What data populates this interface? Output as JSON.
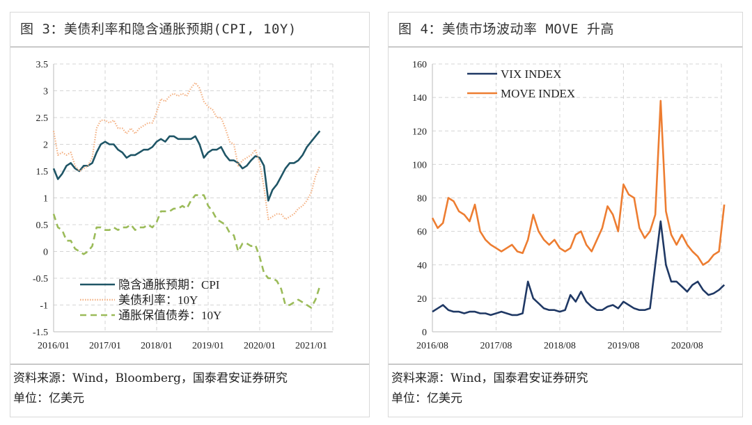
{
  "left_panel": {
    "title": "图 3：美债利率和隐含通胀预期(CPI, 10Y)",
    "source": "资料来源：Wind，Bloomberg，国泰君安证券研究",
    "unit": "单位：亿美元"
  },
  "right_panel": {
    "title": "图 4：美债市场波动率 MOVE 升高",
    "source": "资料来源：Wind，国泰君安证券研究",
    "unit": "单位：亿美元"
  },
  "chart_data": [
    {
      "type": "line",
      "title": "图 3：美债利率和隐含通胀预期(CPI, 10Y)",
      "xlabel": "",
      "ylabel": "",
      "x_start": 2016.0,
      "x_step_months": 1,
      "xlim": [
        2016.0,
        2021.42
      ],
      "ylim": [
        -1.5,
        3.5
      ],
      "yticks": [
        "-1.5",
        "-1",
        "-0.5",
        "0",
        "0.5",
        "1",
        "1.5",
        "2",
        "2.5",
        "3",
        "3.5"
      ],
      "xticks": [
        "2016/01",
        "2017/01",
        "2018/01",
        "2019/01",
        "2020/01",
        "2021/01"
      ],
      "grid": true,
      "legend_position": "bottom-left",
      "series": [
        {
          "name": "隐含通胀预期：CPI",
          "color": "#1f5566",
          "style": "solid",
          "values": [
            1.55,
            1.35,
            1.45,
            1.6,
            1.65,
            1.55,
            1.5,
            1.6,
            1.6,
            1.65,
            1.85,
            2.0,
            2.05,
            2.0,
            2.0,
            1.9,
            1.85,
            1.75,
            1.8,
            1.8,
            1.85,
            1.9,
            1.9,
            1.95,
            2.05,
            2.1,
            2.05,
            2.15,
            2.15,
            2.1,
            2.1,
            2.1,
            2.1,
            2.15,
            2.0,
            1.75,
            1.85,
            1.9,
            1.9,
            1.95,
            1.8,
            1.7,
            1.7,
            1.65,
            1.55,
            1.6,
            1.7,
            1.78,
            1.75,
            1.6,
            0.95,
            1.15,
            1.25,
            1.4,
            1.55,
            1.65,
            1.65,
            1.7,
            1.8,
            1.95,
            2.05,
            2.15,
            2.25
          ]
        },
        {
          "name": "美债利率：10Y",
          "color": "#f4b183",
          "style": "dotted",
          "values": [
            2.25,
            1.8,
            1.85,
            1.8,
            1.85,
            1.6,
            1.5,
            1.55,
            1.6,
            1.75,
            2.3,
            2.45,
            2.45,
            2.4,
            2.45,
            2.3,
            2.3,
            2.2,
            2.3,
            2.2,
            2.3,
            2.35,
            2.4,
            2.4,
            2.6,
            2.85,
            2.8,
            2.9,
            2.95,
            2.9,
            2.95,
            2.9,
            3.05,
            3.15,
            3.05,
            2.8,
            2.7,
            2.65,
            2.5,
            2.5,
            2.3,
            2.05,
            2.0,
            1.6,
            1.7,
            1.75,
            1.8,
            1.9,
            1.65,
            1.2,
            0.6,
            0.65,
            0.7,
            0.7,
            0.6,
            0.65,
            0.7,
            0.8,
            0.85,
            0.95,
            1.1,
            1.4,
            1.6
          ]
        },
        {
          "name": "通胀保值债券：10Y",
          "color": "#9bbb59",
          "style": "dashed",
          "values": [
            0.7,
            0.45,
            0.4,
            0.2,
            0.2,
            0.05,
            0.0,
            -0.05,
            0.0,
            0.1,
            0.45,
            0.45,
            0.4,
            0.4,
            0.45,
            0.4,
            0.45,
            0.45,
            0.5,
            0.4,
            0.45,
            0.45,
            0.5,
            0.45,
            0.55,
            0.75,
            0.75,
            0.75,
            0.8,
            0.8,
            0.85,
            0.8,
            0.95,
            1.05,
            1.05,
            1.05,
            0.85,
            0.75,
            0.6,
            0.55,
            0.5,
            0.35,
            0.3,
            0.0,
            0.15,
            0.15,
            0.1,
            0.12,
            -0.1,
            -0.4,
            -0.5,
            -0.5,
            -0.55,
            -0.7,
            -1.0,
            -1.0,
            -0.95,
            -0.9,
            -0.95,
            -1.0,
            -1.05,
            -0.9,
            -0.65
          ]
        }
      ]
    },
    {
      "type": "line",
      "title": "图 4：美债市场波动率 MOVE 升高",
      "xlabel": "",
      "ylabel": "",
      "x_start": 2016.583,
      "x_step_months": 1,
      "xlim": [
        2016.583,
        2021.12
      ],
      "ylim": [
        0,
        160
      ],
      "yticks": [
        "0",
        "20",
        "40",
        "60",
        "80",
        "100",
        "120",
        "140",
        "160"
      ],
      "xticks": [
        "2016/08",
        "2017/08",
        "2018/08",
        "2019/08",
        "2020/08"
      ],
      "grid": true,
      "legend_position": "top-left",
      "series": [
        {
          "name": "VIX INDEX",
          "color": "#1f3864",
          "style": "solid",
          "values": [
            12,
            14,
            16,
            13,
            12,
            12,
            11,
            12,
            12,
            11,
            11,
            10,
            11,
            12,
            11,
            10,
            10,
            11,
            30,
            20,
            17,
            14,
            13,
            13,
            12,
            13,
            22,
            18,
            24,
            18,
            15,
            13,
            13,
            15,
            16,
            14,
            18,
            16,
            14,
            13,
            13,
            14,
            40,
            66,
            40,
            30,
            30,
            27,
            24,
            28,
            30,
            25,
            22,
            23,
            25,
            28
          ]
        },
        {
          "name": "MOVE INDEX",
          "color": "#ed7d31",
          "style": "solid",
          "values": [
            68,
            62,
            65,
            80,
            78,
            72,
            70,
            66,
            76,
            60,
            55,
            52,
            50,
            48,
            50,
            52,
            48,
            47,
            55,
            70,
            60,
            55,
            52,
            55,
            50,
            48,
            50,
            58,
            60,
            52,
            48,
            55,
            62,
            75,
            70,
            60,
            88,
            82,
            80,
            62,
            56,
            60,
            70,
            138,
            72,
            58,
            52,
            58,
            52,
            48,
            45,
            40,
            42,
            46,
            48,
            76
          ]
        }
      ]
    }
  ]
}
